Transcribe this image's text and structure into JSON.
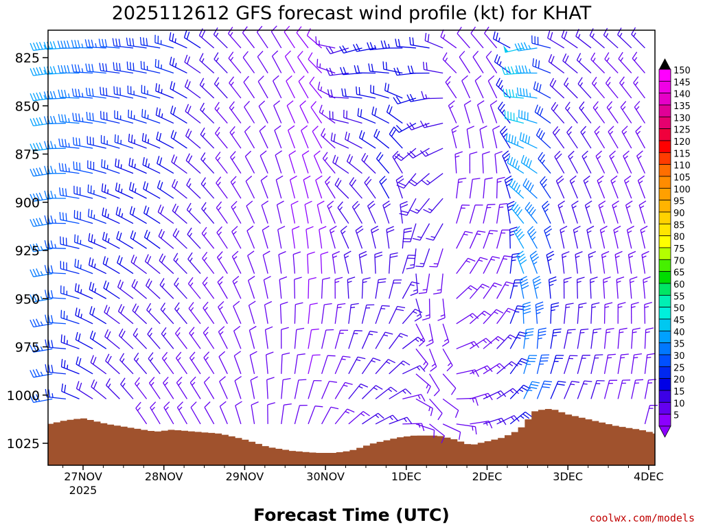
{
  "chart_data": {
    "type": "wind-profile",
    "title": "2025112612 GFS forecast wind profile (kt) for KHAT",
    "xlabel": "Forecast Time (UTC)",
    "ylabel": "Pressure (hPa)",
    "credit": "coolwx.com/models",
    "x_range_days": [
      0,
      8
    ],
    "x_ticks": [
      {
        "day": 0,
        "label": "27NOV",
        "sublabel": "2025"
      },
      {
        "day": 1,
        "label": "28NOV",
        "sublabel": ""
      },
      {
        "day": 2,
        "label": "29NOV",
        "sublabel": ""
      },
      {
        "day": 3,
        "label": "30NOV",
        "sublabel": ""
      },
      {
        "day": 4,
        "label": "1DEC",
        "sublabel": ""
      },
      {
        "day": 5,
        "label": "2DEC",
        "sublabel": ""
      },
      {
        "day": 6,
        "label": "3DEC",
        "sublabel": ""
      },
      {
        "day": 7,
        "label": "4DEC",
        "sublabel": ""
      }
    ],
    "y_range_hpa": [
      812,
      1036
    ],
    "y_ticks": [
      825,
      850,
      875,
      900,
      925,
      950,
      975,
      1000,
      1025
    ],
    "levels_hpa": [
      820,
      833,
      846,
      859,
      872,
      885,
      898,
      911,
      924,
      937,
      950,
      963,
      976,
      989,
      1002,
      1015
    ],
    "legend": {
      "title": "kt",
      "values": [
        150,
        145,
        140,
        135,
        130,
        125,
        120,
        115,
        110,
        105,
        100,
        95,
        90,
        85,
        80,
        75,
        70,
        65,
        60,
        55,
        50,
        45,
        40,
        35,
        30,
        25,
        20,
        15,
        10,
        5
      ],
      "colors": [
        "#ff00ff",
        "#f000e6",
        "#e600c8",
        "#e00096",
        "#e6006e",
        "#f0003c",
        "#ff0000",
        "#ff3c00",
        "#ff6e00",
        "#ff8c00",
        "#ffa000",
        "#ffb400",
        "#ffd200",
        "#ffe600",
        "#ffff00",
        "#b4ff00",
        "#46f000",
        "#00dc00",
        "#00e664",
        "#00f0b4",
        "#00f0dc",
        "#00c8f0",
        "#00a0ff",
        "#0078ff",
        "#0050ff",
        "#0028f0",
        "#0000e6",
        "#3c00e6",
        "#6400f0",
        "#8c00ff"
      ]
    },
    "terrain_note": "surface pressure (brown fill) varies roughly 1010-1031 hPa",
    "surface_pressure": [
      {
        "day": -0.42,
        "hpa": 1015
      },
      {
        "day": -0.2,
        "hpa": 1013
      },
      {
        "day": 0.0,
        "hpa": 1012
      },
      {
        "day": 0.3,
        "hpa": 1015
      },
      {
        "day": 0.6,
        "hpa": 1017
      },
      {
        "day": 0.9,
        "hpa": 1019
      },
      {
        "day": 1.1,
        "hpa": 1018
      },
      {
        "day": 1.4,
        "hpa": 1019
      },
      {
        "day": 1.7,
        "hpa": 1020
      },
      {
        "day": 2.0,
        "hpa": 1023
      },
      {
        "day": 2.3,
        "hpa": 1027
      },
      {
        "day": 2.6,
        "hpa": 1029
      },
      {
        "day": 2.9,
        "hpa": 1030
      },
      {
        "day": 3.1,
        "hpa": 1030
      },
      {
        "day": 3.3,
        "hpa": 1029
      },
      {
        "day": 3.6,
        "hpa": 1025
      },
      {
        "day": 3.9,
        "hpa": 1022
      },
      {
        "day": 4.1,
        "hpa": 1021
      },
      {
        "day": 4.4,
        "hpa": 1021
      },
      {
        "day": 4.6,
        "hpa": 1023
      },
      {
        "day": 4.8,
        "hpa": 1026
      },
      {
        "day": 5.0,
        "hpa": 1024
      },
      {
        "day": 5.2,
        "hpa": 1022
      },
      {
        "day": 5.4,
        "hpa": 1018
      },
      {
        "day": 5.6,
        "hpa": 1008
      },
      {
        "day": 5.8,
        "hpa": 1007
      },
      {
        "day": 6.0,
        "hpa": 1010
      },
      {
        "day": 6.3,
        "hpa": 1013
      },
      {
        "day": 6.6,
        "hpa": 1016
      },
      {
        "day": 6.9,
        "hpa": 1018
      },
      {
        "day": 7.1,
        "hpa": 1020
      },
      {
        "day": 7.3,
        "hpa": 1022
      },
      {
        "day": 7.42,
        "hpa": 1024
      }
    ],
    "wind_keyframes": [
      {
        "day": -0.42,
        "lo": {
          "dir": 255,
          "spd": 32
        },
        "hi": {
          "dir": 262,
          "spd": 45
        }
      },
      {
        "day": 0.0,
        "lo": {
          "dir": 300,
          "spd": 20
        },
        "hi": {
          "dir": 270,
          "spd": 38
        }
      },
      {
        "day": 0.5,
        "lo": {
          "dir": 320,
          "spd": 15
        },
        "hi": {
          "dir": 275,
          "spd": 30
        }
      },
      {
        "day": 1.0,
        "lo": {
          "dir": 330,
          "spd": 13
        },
        "hi": {
          "dir": 280,
          "spd": 28
        }
      },
      {
        "day": 1.6,
        "lo": {
          "dir": 330,
          "spd": 12
        },
        "hi": {
          "dir": 310,
          "spd": 18
        }
      },
      {
        "day": 2.0,
        "lo": {
          "dir": 345,
          "spd": 12
        },
        "hi": {
          "dir": 320,
          "spd": 13
        }
      },
      {
        "day": 2.5,
        "lo": {
          "dir": 10,
          "spd": 11
        },
        "hi": {
          "dir": 330,
          "spd": 10
        }
      },
      {
        "day": 2.9,
        "lo": {
          "dir": 25,
          "spd": 10
        },
        "hi": {
          "dir": 320,
          "spd": 7
        }
      },
      {
        "day": 3.3,
        "lo": {
          "dir": 50,
          "spd": 15
        },
        "hi": {
          "dir": 250,
          "spd": 20
        }
      },
      {
        "day": 3.8,
        "lo": {
          "dir": 70,
          "spd": 16
        },
        "hi": {
          "dir": 265,
          "spd": 23
        }
      },
      {
        "day": 4.3,
        "lo": {
          "dir": 130,
          "spd": 10
        },
        "hi": {
          "dir": 280,
          "spd": 22
        }
      },
      {
        "day": 4.8,
        "lo": {
          "dir": 80,
          "spd": 15
        },
        "hi": {
          "dir": 320,
          "spd": 10
        }
      },
      {
        "day": 5.2,
        "lo": {
          "dir": 60,
          "spd": 17
        },
        "hi": {
          "dir": 320,
          "spd": 10
        }
      },
      {
        "day": 5.5,
        "lo": {
          "dir": 30,
          "spd": 38
        },
        "hi": {
          "dir": 245,
          "spd": 55
        }
      },
      {
        "day": 5.9,
        "lo": {
          "dir": 30,
          "spd": 15
        },
        "hi": {
          "dir": 300,
          "spd": 20
        }
      },
      {
        "day": 6.4,
        "lo": {
          "dir": 20,
          "spd": 15
        },
        "hi": {
          "dir": 310,
          "spd": 15
        }
      },
      {
        "day": 7.42,
        "lo": {
          "dir": 10,
          "spd": 14
        },
        "hi": {
          "dir": 320,
          "spd": 15
        }
      }
    ]
  }
}
